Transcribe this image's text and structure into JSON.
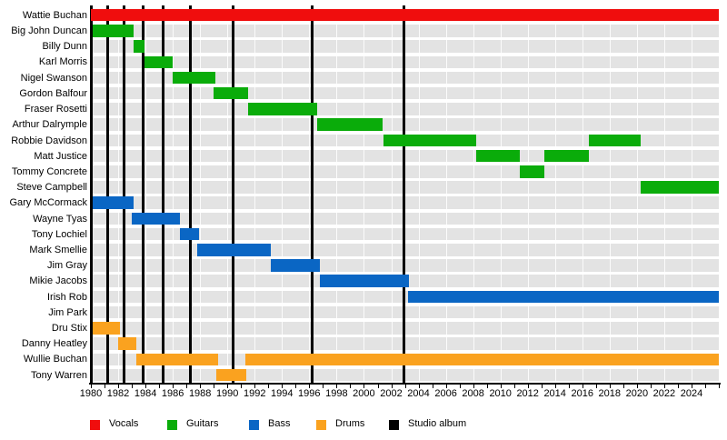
{
  "chart_data": {
    "type": "timeline",
    "x_axis": {
      "start": 1980,
      "end": 2026,
      "labeled_ticks": [
        1980,
        1982,
        1984,
        1986,
        1988,
        1990,
        1992,
        1994,
        1996,
        1998,
        2000,
        2002,
        2004,
        2006,
        2008,
        2010,
        2012,
        2014,
        2016,
        2018,
        2020,
        2022,
        2024
      ],
      "minor_tick_interval": 1
    },
    "legend": [
      {
        "label": "Vocals",
        "color": "#f00d0d"
      },
      {
        "label": "Guitars",
        "color": "#0aac0a"
      },
      {
        "label": "Bass",
        "color": "#0a66c4"
      },
      {
        "label": "Drums",
        "color": "#faa21f"
      },
      {
        "label": "Studio album",
        "color": "#000000"
      }
    ],
    "album_lines": [
      1980.0,
      1981.2,
      1982.4,
      1983.8,
      1985.3,
      1987.3,
      1990.4,
      1996.2,
      2002.9
    ],
    "members": [
      {
        "name": "Wattie Buchan",
        "role": "Vocals",
        "bars": [
          [
            1980.0,
            2026.0
          ]
        ]
      },
      {
        "name": "Big John Duncan",
        "role": "Guitars",
        "bars": [
          [
            1980.1,
            1983.1
          ]
        ]
      },
      {
        "name": "Billy Dunn",
        "role": "Guitars",
        "bars": [
          [
            1983.1,
            1983.9
          ]
        ]
      },
      {
        "name": "Karl Morris",
        "role": "Guitars",
        "bars": [
          [
            1983.9,
            1986.0
          ]
        ]
      },
      {
        "name": "Nigel Swanson",
        "role": "Guitars",
        "bars": [
          [
            1986.0,
            1989.1
          ]
        ]
      },
      {
        "name": "Gordon Balfour",
        "role": "Guitars",
        "bars": [
          [
            1989.0,
            1991.5
          ]
        ]
      },
      {
        "name": "Fraser Rosetti",
        "role": "Guitars",
        "bars": [
          [
            1991.5,
            1996.6
          ]
        ]
      },
      {
        "name": "Arthur Dalrymple",
        "role": "Guitars",
        "bars": [
          [
            1996.6,
            2001.4
          ]
        ]
      },
      {
        "name": "Robbie Davidson",
        "role": "Guitars",
        "bars": [
          [
            2001.4,
            2008.2
          ],
          [
            2016.5,
            2020.3
          ]
        ]
      },
      {
        "name": "Matt Justice",
        "role": "Guitars",
        "bars": [
          [
            2008.2,
            2011.4
          ],
          [
            2013.2,
            2016.5
          ]
        ]
      },
      {
        "name": "Tommy Concrete",
        "role": "Guitars",
        "bars": [
          [
            2011.4,
            2013.2
          ]
        ]
      },
      {
        "name": "Steve Campbell",
        "role": "Guitars",
        "bars": [
          [
            2020.3,
            2026.0
          ]
        ]
      },
      {
        "name": "Gary McCormack",
        "role": "Bass",
        "bars": [
          [
            1980.1,
            1983.1
          ]
        ]
      },
      {
        "name": "Wayne Tyas",
        "role": "Bass",
        "bars": [
          [
            1983.0,
            1986.5
          ]
        ]
      },
      {
        "name": "Tony Lochiel",
        "role": "Bass",
        "bars": [
          [
            1986.5,
            1987.9
          ]
        ]
      },
      {
        "name": "Mark Smellie",
        "role": "Bass",
        "bars": [
          [
            1987.8,
            1993.2
          ]
        ]
      },
      {
        "name": "Jim Gray",
        "role": "Bass",
        "bars": [
          [
            1993.2,
            1996.8
          ]
        ]
      },
      {
        "name": "Mikie Jacobs",
        "role": "Bass",
        "bars": [
          [
            1996.8,
            2003.3
          ]
        ]
      },
      {
        "name": "Irish Rob",
        "role": "Bass",
        "bars": [
          [
            2003.2,
            2026.0
          ]
        ]
      },
      {
        "name": "Jim Park",
        "role": "Bass",
        "bars": []
      },
      {
        "name": "Dru Stix",
        "role": "Drums",
        "bars": [
          [
            1980.1,
            1982.1
          ]
        ]
      },
      {
        "name": "Danny Heatley",
        "role": "Drums",
        "bars": [
          [
            1982.0,
            1983.3
          ]
        ]
      },
      {
        "name": "Wullie Buchan",
        "role": "Drums",
        "bars": [
          [
            1983.3,
            1989.3
          ],
          [
            1991.3,
            2026.0
          ]
        ]
      },
      {
        "name": "Tony Warren",
        "role": "Drums",
        "bars": [
          [
            1989.2,
            1991.4
          ]
        ]
      }
    ]
  }
}
